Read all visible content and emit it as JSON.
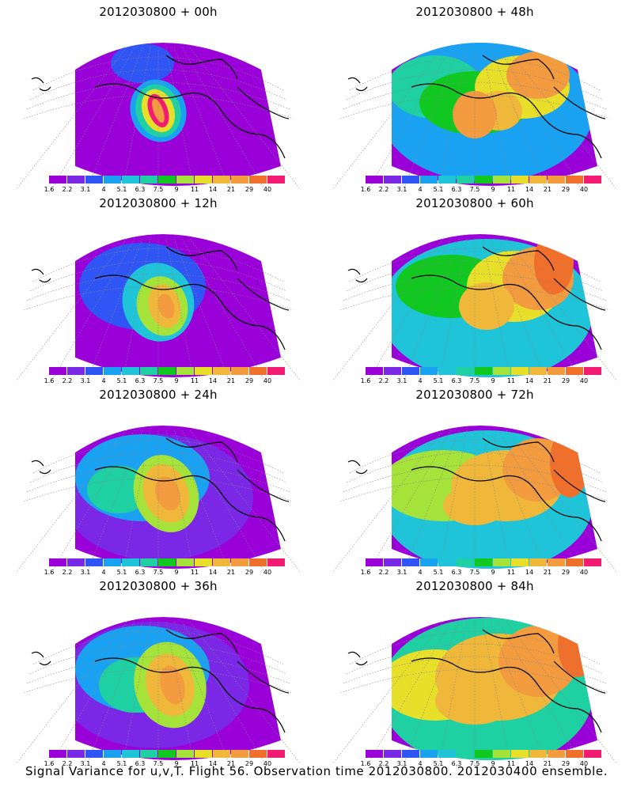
{
  "panels": [
    {
      "title": "2012030800  +  00h"
    },
    {
      "title": "2012030800  +  48h"
    },
    {
      "title": "2012030800  +  12h"
    },
    {
      "title": "2012030800  +  60h"
    },
    {
      "title": "2012030800  +  24h"
    },
    {
      "title": "2012030800  +  72h"
    },
    {
      "title": "2012030800  +  36h"
    },
    {
      "title": "2012030800  +  84h"
    }
  ],
  "colorbar": {
    "labels": [
      "1.6",
      "2.2",
      "3.1",
      "4",
      "5.1",
      "6.3",
      "7.5",
      "9",
      "11",
      "14",
      "21",
      "29",
      "40"
    ],
    "colors": [
      "#9a00d8",
      "#7a28e6",
      "#2f55f5",
      "#1aa2f2",
      "#1fc4d8",
      "#1fd0a3",
      "#10c820",
      "#a5e23a",
      "#e8df2a",
      "#f0b83a",
      "#f29b3f",
      "#f06f2a",
      "#f21c72"
    ]
  },
  "footer": "Signal Variance for u,v,T. Flight 56. Observation time 2012030800. 2012030400 ensemble."
}
